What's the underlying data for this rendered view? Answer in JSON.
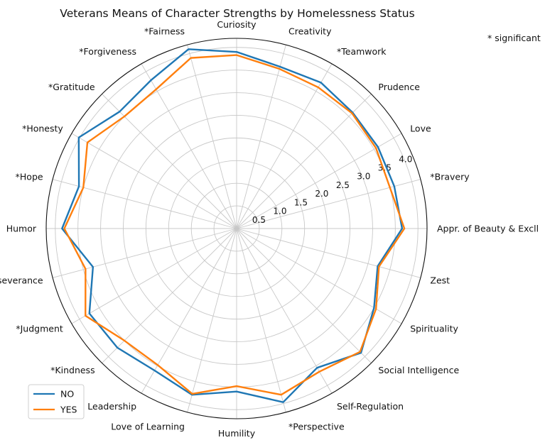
{
  "chart_data": {
    "type": "radar",
    "title": "Veterans Means of Character Strengths by Homelessness Status",
    "annotation": "* significant",
    "categories": [
      "Appr. of Beauty & Excll",
      "*Bravery",
      "Love",
      "Prudence",
      "*Teamwork",
      "Creativity",
      "Curiosity",
      "*Fairness",
      "*Forgiveness",
      "*Gratitude",
      "*Honesty",
      "*Hope",
      "Humor",
      "*Perseverance",
      "*Judgment",
      "*Kindness",
      "Leadership",
      "Love of Learning",
      "Humility",
      "*Perspective",
      "Self-Regulation",
      "Social Intelligence",
      "Spirituality",
      "Zest"
    ],
    "rticks": [
      "0.5",
      "1.0",
      "1.5",
      "2.0",
      "2.5",
      "3.0",
      "3.5",
      "4.0"
    ],
    "rlim": [
      0,
      4.2
    ],
    "series": [
      {
        "name": "NO",
        "color": "#1f77b4",
        "values": [
          3.65,
          3.6,
          3.6,
          3.62,
          3.72,
          3.7,
          3.9,
          4.1,
          3.78,
          3.65,
          4.02,
          3.6,
          3.85,
          3.28,
          3.75,
          3.72,
          3.62,
          3.8,
          3.6,
          3.97,
          3.55,
          3.88,
          3.5,
          3.22
        ]
      },
      {
        "name": "YES",
        "color": "#ff7f0e",
        "values": [
          3.7,
          3.5,
          3.55,
          3.6,
          3.6,
          3.65,
          3.83,
          3.9,
          3.55,
          3.5,
          3.8,
          3.5,
          3.8,
          3.45,
          3.85,
          3.5,
          3.48,
          3.78,
          3.48,
          3.8,
          3.65,
          3.85,
          3.55,
          3.25
        ]
      }
    ],
    "legend_position": "lower-left"
  }
}
